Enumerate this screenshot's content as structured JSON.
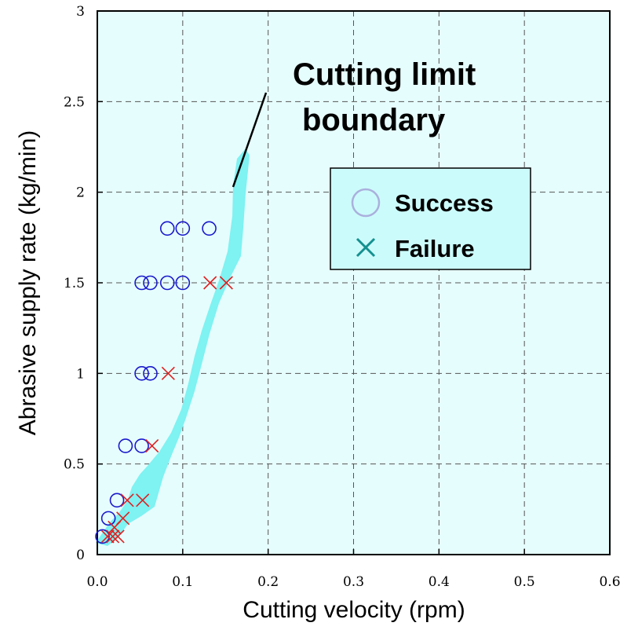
{
  "chart_data": {
    "type": "scatter",
    "xlabel": "Cutting velocity (rpm)",
    "ylabel": "Abrasive supply rate (kg/min)",
    "xlim": [
      0,
      0.6
    ],
    "ylim": [
      0,
      3
    ],
    "xticks": [
      "0.0",
      "0.1",
      "0.2",
      "0.3",
      "0.4",
      "0.5",
      "0.6"
    ],
    "yticks": [
      "0",
      "0.5",
      "1",
      "1.5",
      "2",
      "2.5",
      "3"
    ],
    "grid": true,
    "background_color": "#e6fdfd",
    "band_color": "#7ff2f2",
    "annotation": {
      "line1": "Cutting limit",
      "line2": "boundary"
    },
    "legend": {
      "placement": "upper-right",
      "background_color": "#ccfbfb",
      "success_label": "Success",
      "failure_label": "Failure"
    },
    "series": [
      {
        "name": "Success",
        "marker": "circle",
        "color": "#1a1acc",
        "points": [
          [
            0.006,
            0.1
          ],
          [
            0.013,
            0.2
          ],
          [
            0.023,
            0.3
          ],
          [
            0.033,
            0.6
          ],
          [
            0.052,
            0.6
          ],
          [
            0.052,
            1.0
          ],
          [
            0.062,
            1.0
          ],
          [
            0.052,
            1.5
          ],
          [
            0.062,
            1.5
          ],
          [
            0.082,
            1.5
          ],
          [
            0.1,
            1.5
          ],
          [
            0.082,
            1.8
          ],
          [
            0.1,
            1.8
          ],
          [
            0.131,
            1.8
          ]
        ]
      },
      {
        "name": "Failure",
        "marker": "cross",
        "color": "#e02020",
        "points": [
          [
            0.012,
            0.1
          ],
          [
            0.018,
            0.1
          ],
          [
            0.024,
            0.1
          ],
          [
            0.02,
            0.15
          ],
          [
            0.03,
            0.2
          ],
          [
            0.035,
            0.3
          ],
          [
            0.053,
            0.3
          ],
          [
            0.064,
            0.6
          ],
          [
            0.083,
            1.0
          ],
          [
            0.132,
            1.5
          ],
          [
            0.151,
            1.5
          ]
        ]
      }
    ]
  }
}
